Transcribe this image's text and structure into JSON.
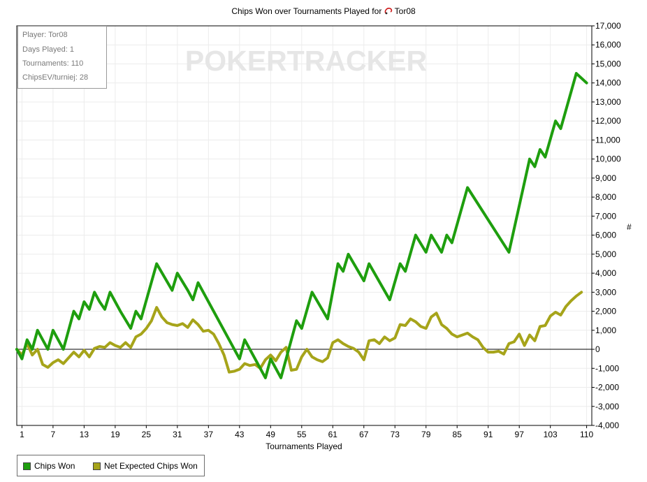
{
  "title": "Chips Won over Tournaments Played for",
  "player_name": "Tor08",
  "watermark": "POKERTRACKER",
  "info": {
    "player": "Player: Tor08",
    "days": "Days Played: 1",
    "tournaments": "Tournaments: 110",
    "chipsev": "ChipsEV/turniej: 28"
  },
  "legend": {
    "chips_won": "Chips Won",
    "net_expected": "Net Expected Chips Won"
  },
  "colors": {
    "chips_won": "#1e9e0e",
    "net_expected": "#a6a41a"
  },
  "chart_data": {
    "type": "line",
    "xlabel": "Tournaments Played",
    "ylabel": "#",
    "xlim": [
      0,
      111
    ],
    "ylim": [
      -4000,
      17000
    ],
    "x_ticks": [
      1,
      7,
      13,
      19,
      25,
      31,
      37,
      43,
      49,
      55,
      61,
      67,
      73,
      79,
      85,
      91,
      97,
      103,
      110
    ],
    "y_ticks": [
      -4000,
      -3000,
      -2000,
      -1000,
      0,
      1000,
      2000,
      3000,
      4000,
      5000,
      6000,
      7000,
      8000,
      9000,
      10000,
      11000,
      12000,
      13000,
      14000,
      15000,
      16000,
      17000
    ],
    "y_tick_labels": [
      "-4,000",
      "-3,000",
      "-2,000",
      "-1,000",
      "0",
      "1,000",
      "2,000",
      "3,000",
      "4,000",
      "5,000",
      "6,000",
      "7,000",
      "8,000",
      "9,000",
      "10,000",
      "11,000",
      "12,000",
      "13,000",
      "14,000",
      "15,000",
      "16,000",
      "17,000"
    ],
    "grid": true,
    "legend_position": "bottom-left",
    "series": [
      {
        "name": "Chips Won",
        "points": [
          [
            0,
            0
          ],
          [
            1,
            -500
          ],
          [
            2,
            500
          ],
          [
            3,
            0
          ],
          [
            4,
            1000
          ],
          [
            5,
            500
          ],
          [
            6,
            0
          ],
          [
            7,
            1000
          ],
          [
            8,
            500
          ],
          [
            9,
            0
          ],
          [
            11,
            2000
          ],
          [
            12,
            1600
          ],
          [
            13,
            2500
          ],
          [
            14,
            2100
          ],
          [
            15,
            3000
          ],
          [
            16,
            2500
          ],
          [
            17,
            2100
          ],
          [
            18,
            3000
          ],
          [
            19,
            2500
          ],
          [
            20,
            2000
          ],
          [
            22,
            1100
          ],
          [
            23,
            2000
          ],
          [
            24,
            1600
          ],
          [
            27,
            4500
          ],
          [
            30,
            3100
          ],
          [
            31,
            4000
          ],
          [
            33,
            3100
          ],
          [
            34,
            2600
          ],
          [
            35,
            3500
          ],
          [
            43,
            -500
          ],
          [
            44,
            500
          ],
          [
            48,
            -1500
          ],
          [
            49,
            -500
          ],
          [
            51,
            -1500
          ],
          [
            54,
            1500
          ],
          [
            55,
            1100
          ],
          [
            57,
            3000
          ],
          [
            60,
            1600
          ],
          [
            62,
            4500
          ],
          [
            63,
            4100
          ],
          [
            64,
            5000
          ],
          [
            67,
            3600
          ],
          [
            68,
            4500
          ],
          [
            72,
            2600
          ],
          [
            74,
            4500
          ],
          [
            75,
            4100
          ],
          [
            77,
            6000
          ],
          [
            79,
            5100
          ],
          [
            80,
            6000
          ],
          [
            82,
            5100
          ],
          [
            83,
            6000
          ],
          [
            84,
            5600
          ],
          [
            87,
            8500
          ],
          [
            95,
            5100
          ],
          [
            99,
            10000
          ],
          [
            100,
            9600
          ],
          [
            101,
            10500
          ],
          [
            102,
            10100
          ],
          [
            104,
            12000
          ],
          [
            105,
            11600
          ],
          [
            108,
            14500
          ],
          [
            110,
            14000
          ]
        ]
      },
      {
        "name": "Net Expected Chips Won",
        "points": [
          [
            0,
            0
          ],
          [
            1,
            -300
          ],
          [
            2,
            300
          ],
          [
            3,
            -300
          ],
          [
            4,
            0
          ],
          [
            5,
            -800
          ],
          [
            6,
            -950
          ],
          [
            7,
            -700
          ],
          [
            8,
            -550
          ],
          [
            9,
            -750
          ],
          [
            11,
            -150
          ],
          [
            12,
            -400
          ],
          [
            13,
            -50
          ],
          [
            14,
            -400
          ],
          [
            15,
            50
          ],
          [
            16,
            150
          ],
          [
            17,
            100
          ],
          [
            18,
            350
          ],
          [
            19,
            200
          ],
          [
            20,
            100
          ],
          [
            21,
            350
          ],
          [
            22,
            100
          ],
          [
            23,
            650
          ],
          [
            24,
            800
          ],
          [
            25,
            1100
          ],
          [
            26,
            1500
          ],
          [
            27,
            2200
          ],
          [
            28,
            1700
          ],
          [
            29,
            1400
          ],
          [
            30,
            1300
          ],
          [
            31,
            1250
          ],
          [
            32,
            1350
          ],
          [
            33,
            1150
          ],
          [
            34,
            1550
          ],
          [
            35,
            1300
          ],
          [
            36,
            950
          ],
          [
            37,
            1000
          ],
          [
            38,
            800
          ],
          [
            39,
            300
          ],
          [
            40,
            -300
          ],
          [
            41,
            -1200
          ],
          [
            42,
            -1150
          ],
          [
            43,
            -1050
          ],
          [
            44,
            -750
          ],
          [
            45,
            -850
          ],
          [
            46,
            -800
          ],
          [
            47,
            -1000
          ],
          [
            48,
            -550
          ],
          [
            49,
            -300
          ],
          [
            50,
            -600
          ],
          [
            51,
            -150
          ],
          [
            52,
            100
          ],
          [
            53,
            -1100
          ],
          [
            54,
            -1050
          ],
          [
            55,
            -400
          ],
          [
            56,
            0
          ],
          [
            57,
            -400
          ],
          [
            58,
            -550
          ],
          [
            59,
            -650
          ],
          [
            60,
            -450
          ],
          [
            61,
            350
          ],
          [
            62,
            500
          ],
          [
            63,
            300
          ],
          [
            64,
            150
          ],
          [
            65,
            50
          ],
          [
            66,
            -150
          ],
          [
            67,
            -550
          ],
          [
            68,
            450
          ],
          [
            69,
            500
          ],
          [
            70,
            300
          ],
          [
            71,
            650
          ],
          [
            72,
            450
          ],
          [
            73,
            600
          ],
          [
            74,
            1300
          ],
          [
            75,
            1250
          ],
          [
            76,
            1600
          ],
          [
            77,
            1450
          ],
          [
            78,
            1200
          ],
          [
            79,
            1100
          ],
          [
            80,
            1700
          ],
          [
            81,
            1900
          ],
          [
            82,
            1300
          ],
          [
            83,
            1100
          ],
          [
            84,
            800
          ],
          [
            85,
            650
          ],
          [
            86,
            750
          ],
          [
            87,
            850
          ],
          [
            88,
            650
          ],
          [
            89,
            500
          ],
          [
            90,
            100
          ],
          [
            91,
            -150
          ],
          [
            92,
            -150
          ],
          [
            93,
            -100
          ],
          [
            94,
            -250
          ],
          [
            95,
            300
          ],
          [
            96,
            400
          ],
          [
            97,
            800
          ],
          [
            98,
            200
          ],
          [
            99,
            750
          ],
          [
            100,
            450
          ],
          [
            101,
            1200
          ],
          [
            102,
            1250
          ],
          [
            103,
            1750
          ],
          [
            104,
            1950
          ],
          [
            105,
            1800
          ],
          [
            106,
            2250
          ],
          [
            107,
            2550
          ],
          [
            108,
            2800
          ],
          [
            109,
            3000
          ]
        ]
      }
    ]
  }
}
